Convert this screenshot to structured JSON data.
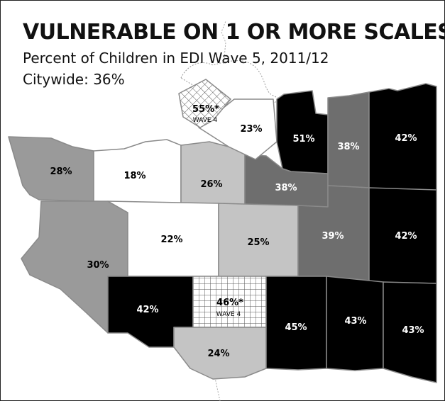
{
  "map": {
    "title": "VULNERABLE ON 1 OR MORE SCALES",
    "subtitle": "Percent of Children in EDI Wave 5, 2011/12",
    "citywide": "Citywide: 36%",
    "colors": {
      "white": "#ffffff",
      "light_gray": "#c4c4c4",
      "mid_gray": "#9a9a9a",
      "dark_gray": "#6e6e6e",
      "black": "#000000",
      "border": "#8a8a8a",
      "hatch": "#555555"
    },
    "neighbourhoods": [
      {
        "id": "west-point-grey",
        "value": "28%",
        "shade": "mid_gray"
      },
      {
        "id": "kitsilano",
        "value": "18%",
        "shade": "white"
      },
      {
        "id": "fairview",
        "value": "26%",
        "shade": "light_gray"
      },
      {
        "id": "mount-pleasant",
        "value": "38%",
        "shade": "dark_gray"
      },
      {
        "id": "downtown",
        "value": "55%*",
        "note": "WAVE 4",
        "shade": "hatched"
      },
      {
        "id": "west-end",
        "value": "23%",
        "shade": "white"
      },
      {
        "id": "strathcona",
        "value": "51%",
        "shade": "black"
      },
      {
        "id": "grandview-woodland",
        "value": "38%",
        "shade": "dark_gray"
      },
      {
        "id": "hastings-sunrise",
        "value": "42%",
        "shade": "black"
      },
      {
        "id": "dunbar-southlands",
        "value": "30%",
        "shade": "mid_gray"
      },
      {
        "id": "arbutus-ridge",
        "value": "22%",
        "shade": "white"
      },
      {
        "id": "riley-park",
        "value": "25%",
        "shade": "light_gray"
      },
      {
        "id": "kensington-cedar-cottage",
        "value": "39%",
        "shade": "dark_gray"
      },
      {
        "id": "renfrew-collingwood",
        "value": "42%",
        "shade": "black"
      },
      {
        "id": "kerrisdale",
        "value": "42%",
        "shade": "black"
      },
      {
        "id": "oakridge",
        "value": "46%*",
        "note": "WAVE 4",
        "shade": "hatched"
      },
      {
        "id": "marpole",
        "value": "24%",
        "shade": "light_gray"
      },
      {
        "id": "sunset",
        "value": "45%",
        "shade": "black"
      },
      {
        "id": "victoria-fraserview",
        "value": "43%",
        "shade": "black"
      },
      {
        "id": "killarney",
        "value": "43%",
        "shade": "black"
      }
    ]
  }
}
